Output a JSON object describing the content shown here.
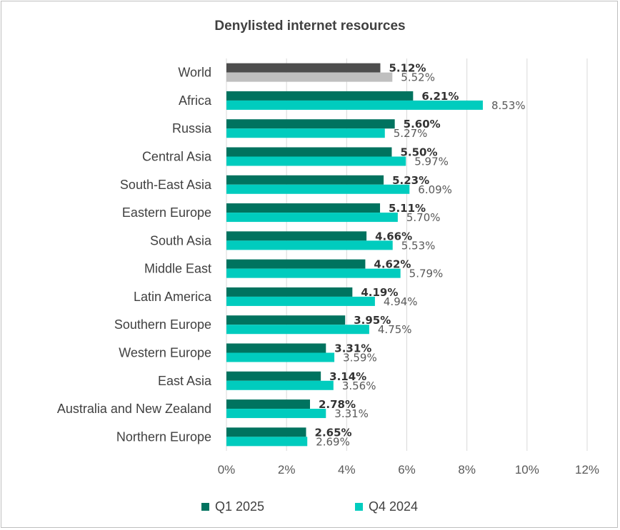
{
  "chart_data": {
    "type": "bar",
    "orientation": "horizontal",
    "title": "Denylisted internet resources",
    "categories": [
      "World",
      "Africa",
      "Russia",
      "Central Asia",
      "South-East Asia",
      "Eastern Europe",
      "South Asia",
      "Middle East",
      "Latin America",
      "Southern Europe",
      "Western Europe",
      "East Asia",
      "Australia and New Zealand",
      "Northern Europe"
    ],
    "series": [
      {
        "name": "Q1 2025",
        "values": [
          5.12,
          6.21,
          5.6,
          5.5,
          5.23,
          5.11,
          4.66,
          4.62,
          4.19,
          3.95,
          3.31,
          3.14,
          2.78,
          2.65
        ],
        "labels": [
          "5.12%",
          "6.21%",
          "5.60%",
          "5.50%",
          "5.23%",
          "5.11%",
          "4.66%",
          "4.62%",
          "4.19%",
          "3.95%",
          "3.31%",
          "3.14%",
          "2.78%",
          "2.65%"
        ],
        "color": "#00735f",
        "highlight_color": "#4d4d4d"
      },
      {
        "name": "Q4 2024",
        "values": [
          5.52,
          8.53,
          5.27,
          5.97,
          6.09,
          5.7,
          5.53,
          5.79,
          4.94,
          4.75,
          3.59,
          3.56,
          3.31,
          2.69
        ],
        "labels": [
          "5.52%",
          "8.53%",
          "5.27%",
          "5.97%",
          "6.09%",
          "5.70%",
          "5.53%",
          "5.79%",
          "4.94%",
          "4.75%",
          "3.59%",
          "3.56%",
          "3.31%",
          "2.69%"
        ],
        "color": "#00ccbe",
        "highlight_color": "#bfbfbf"
      }
    ],
    "x_ticks": [
      "0%",
      "2%",
      "4%",
      "6%",
      "8%",
      "10%",
      "12%"
    ],
    "xlim": [
      0,
      12
    ],
    "grid": true,
    "legend_position": "bottom"
  }
}
